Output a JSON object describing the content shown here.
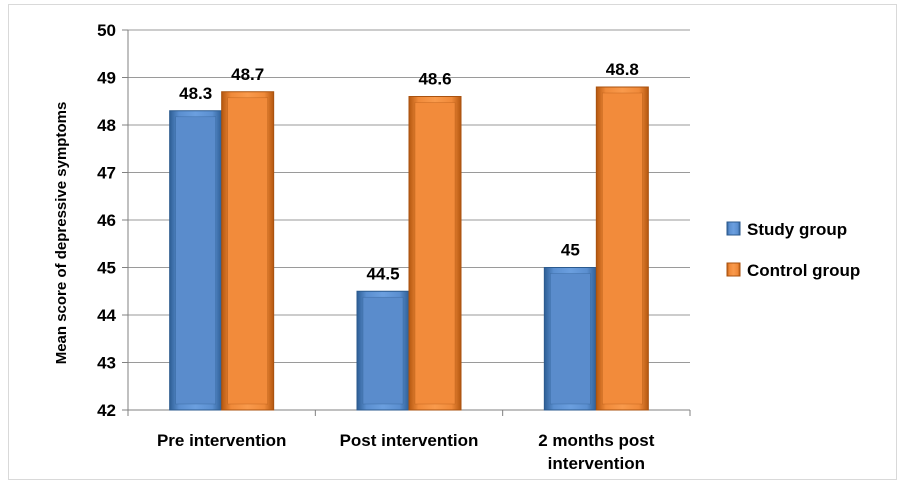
{
  "chart_data": {
    "type": "bar",
    "title": "",
    "xlabel": "",
    "ylabel": "Mean score of depressive symptoms",
    "ylim": [
      42,
      50
    ],
    "yticks": [
      42,
      43,
      44,
      45,
      46,
      47,
      48,
      49,
      50
    ],
    "grid": true,
    "legend_position": "right",
    "categories": [
      "Pre intervention",
      "Post intervention",
      "2 months post intervention"
    ],
    "category_lines": [
      [
        "Pre intervention"
      ],
      [
        "Post intervention"
      ],
      [
        "2 months post",
        "intervention"
      ]
    ],
    "series": [
      {
        "name": "Study group",
        "values": [
          48.3,
          44.5,
          45
        ],
        "labels": [
          "48.3",
          "44.5",
          "45"
        ],
        "color": "#4f81bd"
      },
      {
        "name": "Control group",
        "values": [
          48.7,
          48.6,
          48.8
        ],
        "labels": [
          "48.7",
          "48.6",
          "48.8"
        ],
        "color": "#f79646"
      }
    ]
  }
}
